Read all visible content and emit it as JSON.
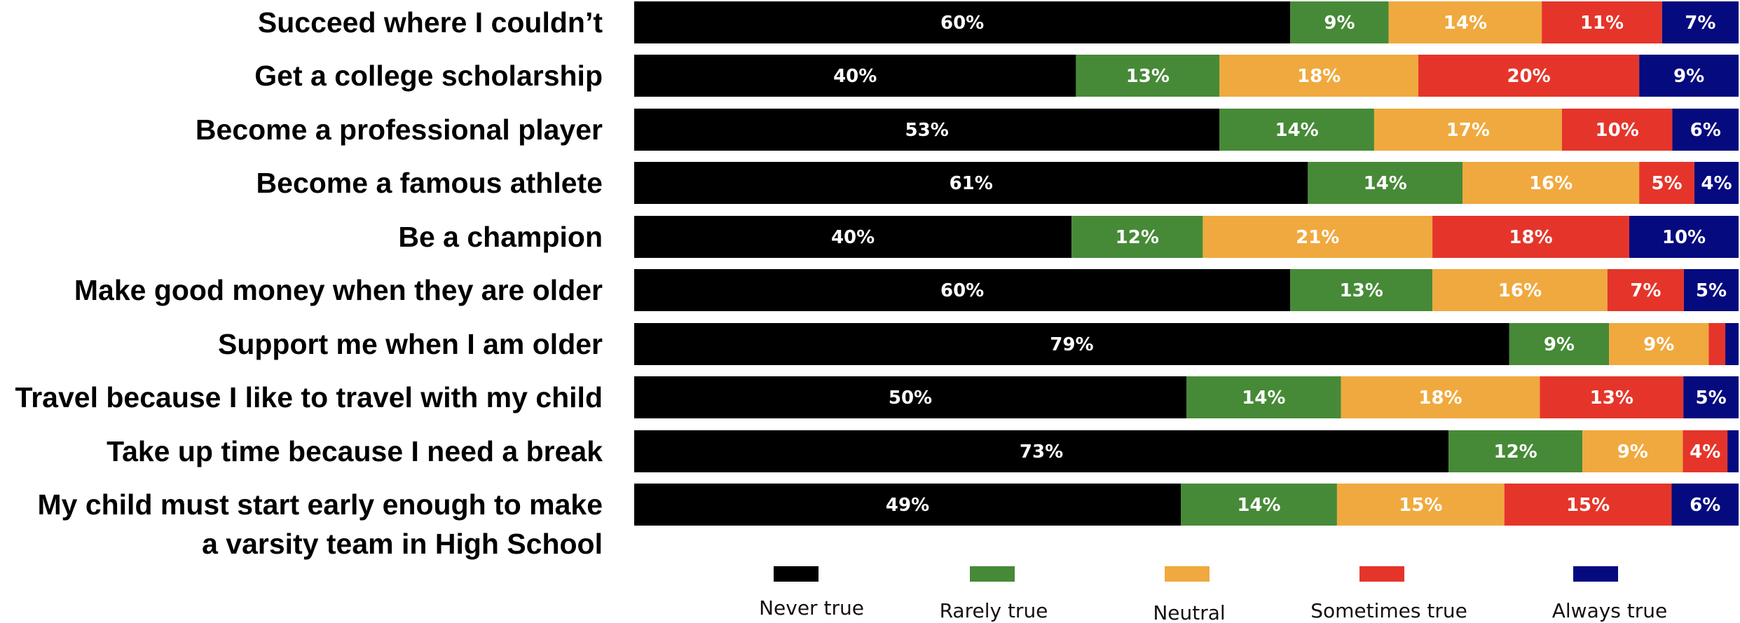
{
  "chart_data": {
    "type": "bar",
    "orientation": "horizontal",
    "stacked": true,
    "categories": [
      [
        "Succeed where I couldn’t"
      ],
      [
        "Get a college scholarship"
      ],
      [
        "Become a professional player"
      ],
      [
        "Become a famous athlete"
      ],
      [
        "Be a champion"
      ],
      [
        "Make good money when they are older"
      ],
      [
        "Support me when I am older"
      ],
      [
        "Travel because I like to travel with my child"
      ],
      [
        "Take up time because I need a break"
      ],
      [
        "My child must start early enough to make",
        "a varsity team in High School"
      ]
    ],
    "series": [
      {
        "name": "Never true",
        "color": "#000000",
        "values": [
          60,
          40,
          53,
          61,
          40,
          60,
          79,
          50,
          73,
          49
        ]
      },
      {
        "name": "Rarely true",
        "color": "#468a37",
        "values": [
          9,
          13,
          14,
          14,
          12,
          13,
          9,
          14,
          12,
          14
        ]
      },
      {
        "name": "Neutral",
        "color": "#f0a93e",
        "values": [
          14,
          18,
          17,
          16,
          21,
          16,
          9,
          18,
          9,
          15
        ]
      },
      {
        "name": "Sometimes true",
        "color": "#e5352a",
        "values": [
          11,
          20,
          10,
          5,
          18,
          7,
          1.5,
          13,
          4,
          15
        ]
      },
      {
        "name": "Always true",
        "color": "#050a7e",
        "values": [
          7,
          9,
          6,
          4,
          10,
          5,
          1.2,
          5,
          1,
          6
        ]
      }
    ],
    "value_labels": [
      [
        "60%",
        "9%",
        "14%",
        "11%",
        "7%"
      ],
      [
        "40%",
        "13%",
        "18%",
        "20%",
        "9%"
      ],
      [
        "53%",
        "14%",
        "17%",
        "10%",
        "6%"
      ],
      [
        "61%",
        "14%",
        "16%",
        "5%",
        "4%"
      ],
      [
        "40%",
        "12%",
        "21%",
        "18%",
        "10%"
      ],
      [
        "60%",
        "13%",
        "16%",
        "7%",
        "5%"
      ],
      [
        "79%",
        "9%",
        "9%",
        "",
        ""
      ],
      [
        "50%",
        "14%",
        "18%",
        "13%",
        "5%"
      ],
      [
        "73%",
        "12%",
        "9%",
        "4%",
        ""
      ],
      [
        "49%",
        "14%",
        "15%",
        "15%",
        "6%"
      ]
    ],
    "legend_position": "bottom",
    "grid": false
  }
}
